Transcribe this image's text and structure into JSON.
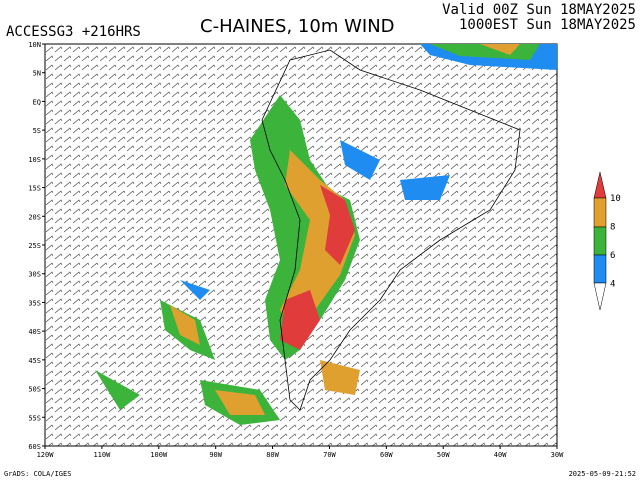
{
  "header": {
    "model": "ACCESSG3 +216HRS",
    "title": "C-HAINES, 10m WIND",
    "valid": "Valid 00Z Sun 18MAY2025",
    "local": "1000EST Sun 18MAY2025"
  },
  "map": {
    "lat_labels": [
      "10N",
      "5N",
      "EQ",
      "5S",
      "10S",
      "15S",
      "20S",
      "25S",
      "30S",
      "35S",
      "40S",
      "45S",
      "50S",
      "55S",
      "60S"
    ],
    "lon_labels": [
      "120W",
      "110W",
      "100W",
      "90W",
      "80W",
      "70W",
      "60W",
      "50W",
      "40W",
      "30W"
    ]
  },
  "colorbar": {
    "labels": [
      10,
      8,
      6,
      4
    ]
  },
  "footer": {
    "credit": "GrADS: COLA/IGES",
    "timestamp": "2025-05-09-21:52"
  }
}
